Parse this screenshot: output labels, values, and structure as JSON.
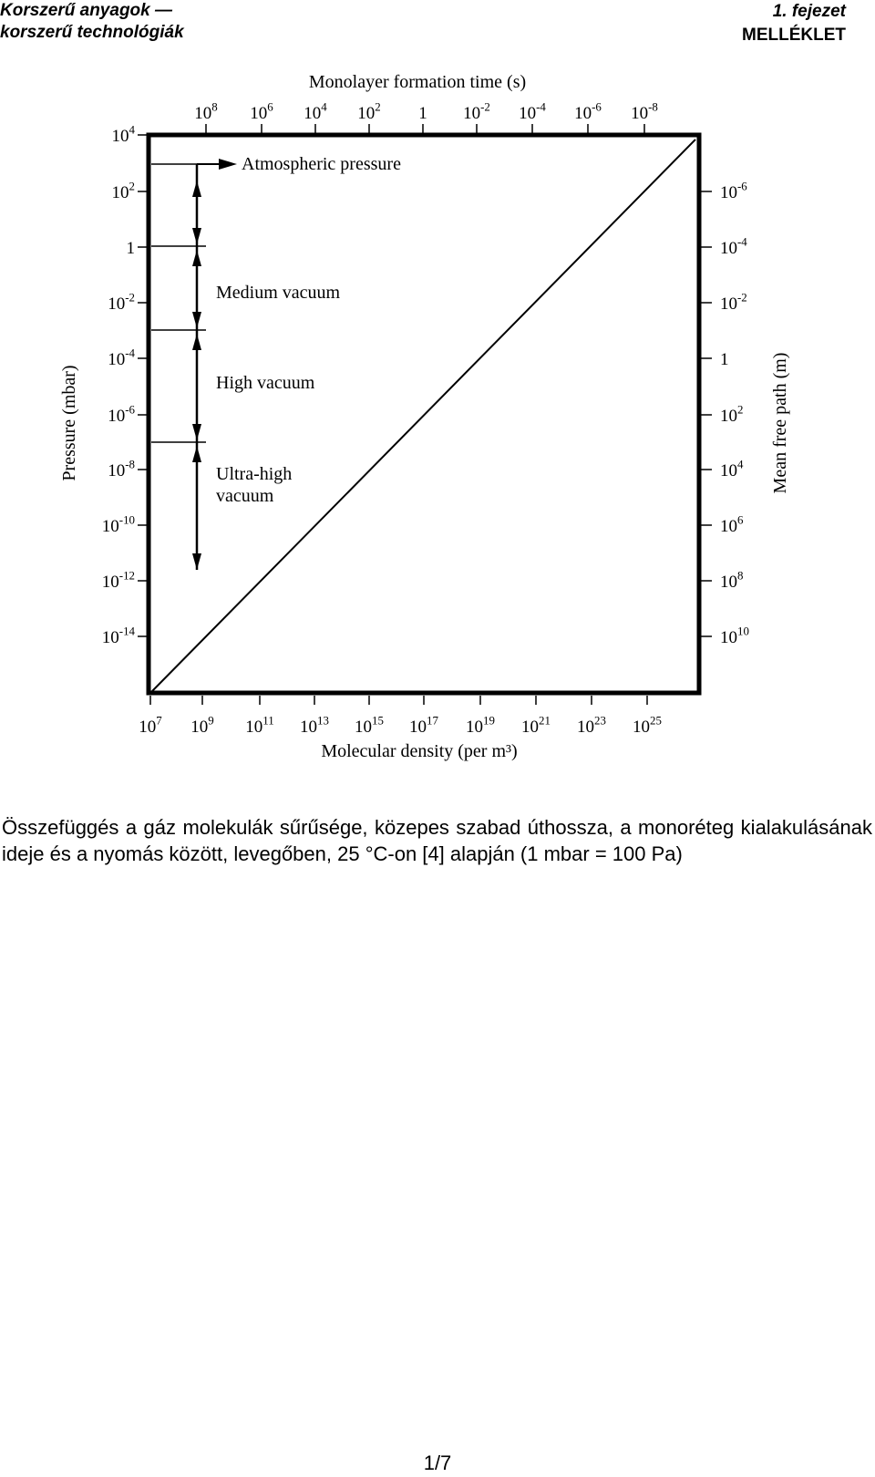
{
  "header": {
    "left_line1": "Korszerű anyagok —",
    "left_line2": "korszerű technológiák",
    "right_line1": "1. fejezet",
    "right_line2": "MELLÉKLET"
  },
  "chart_data": {
    "type": "line",
    "title": "",
    "top_axis_label": "Monolayer formation time (s)",
    "bottom_axis_label": "Molecular density (per m³)",
    "left_axis_label": "Pressure (mbar)",
    "right_axis_label": "Mean free path (m)",
    "bottom_ticks": [
      "10^7",
      "10^9",
      "10^11",
      "10^13",
      "10^15",
      "10^17",
      "10^19",
      "10^21",
      "10^23",
      "10^25"
    ],
    "top_ticks": [
      "10^8",
      "10^6",
      "10^4",
      "10^2",
      "1",
      "10^-2",
      "10^-4",
      "10^-6",
      "10^-8"
    ],
    "left_ticks": [
      "10^4",
      "10^2",
      "1",
      "10^-2",
      "10^-4",
      "10^-6",
      "10^-8",
      "10^-10",
      "10^-12",
      "10^-14"
    ],
    "right_ticks": [
      "10^-6",
      "10^-4",
      "10^-2",
      "1",
      "10^2",
      "10^4",
      "10^6",
      "10^8",
      "10^10"
    ],
    "series": [
      {
        "x": [
          10000000.0,
          1e+26
        ],
        "y": [
          1e-16,
          10000.0
        ]
      }
    ],
    "regions": [
      {
        "label": "Atmospheric pressure",
        "pressure": 1000
      },
      {
        "label": "Medium vacuum",
        "from": 1,
        "to": 0.001
      },
      {
        "label": "High vacuum",
        "from": 0.001,
        "to": 1e-07
      },
      {
        "label": "Ultra-high vacuum",
        "from": 1e-07,
        "to": 1e-12
      }
    ],
    "xscale": "log",
    "yscale": "log",
    "grid": false
  },
  "caption": "Összefüggés a gáz molekulák sűrűsége, közepes szabad úthossza, a monoréteg kialakulásának ideje és a nyomás között, levegőben, 25 °C-on [4] alapján (1 mbar = 100 Pa)",
  "footer": {
    "page": "1/7"
  }
}
